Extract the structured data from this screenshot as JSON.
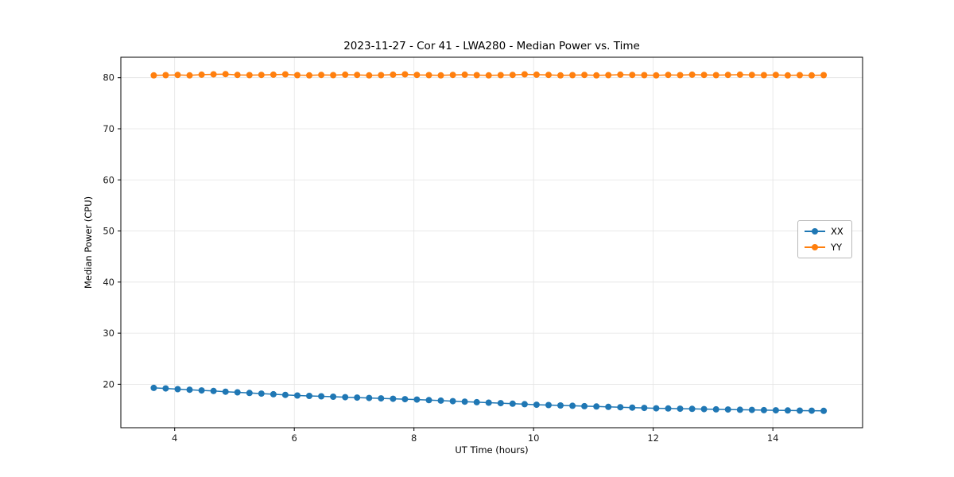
{
  "chart_data": {
    "type": "line",
    "title": "2023-11-27 - Cor 41 - LWA280 - Median Power vs. Time",
    "xlabel": "UT Time (hours)",
    "ylabel": "Median Power (CPU)",
    "xlim": [
      3.1,
      15.5
    ],
    "ylim": [
      11.5,
      84
    ],
    "xticks": [
      4,
      6,
      8,
      10,
      12,
      14
    ],
    "yticks": [
      20,
      30,
      40,
      50,
      60,
      70,
      80
    ],
    "grid": true,
    "legend_position": "center right",
    "x": [
      3.65,
      3.85,
      4.05,
      4.25,
      4.45,
      4.65,
      4.85,
      5.05,
      5.25,
      5.45,
      5.65,
      5.85,
      6.05,
      6.25,
      6.45,
      6.65,
      6.85,
      7.05,
      7.25,
      7.45,
      7.65,
      7.85,
      8.05,
      8.25,
      8.45,
      8.65,
      8.85,
      9.05,
      9.25,
      9.45,
      9.65,
      9.85,
      10.05,
      10.25,
      10.45,
      10.65,
      10.85,
      11.05,
      11.25,
      11.45,
      11.65,
      11.85,
      12.05,
      12.25,
      12.45,
      12.65,
      12.85,
      13.05,
      13.25,
      13.45,
      13.65,
      13.85,
      14.05,
      14.25,
      14.45,
      14.65,
      14.85
    ],
    "series": [
      {
        "name": "XX",
        "color": "#1f77b4",
        "values": [
          19.3,
          19.18,
          19.05,
          18.93,
          18.8,
          18.68,
          18.55,
          18.43,
          18.3,
          18.18,
          18.05,
          17.93,
          17.8,
          17.72,
          17.64,
          17.56,
          17.48,
          17.4,
          17.32,
          17.24,
          17.16,
          17.08,
          17.0,
          16.9,
          16.8,
          16.7,
          16.6,
          16.5,
          16.4,
          16.3,
          16.2,
          16.1,
          16.0,
          15.93,
          15.86,
          15.79,
          15.72,
          15.65,
          15.58,
          15.51,
          15.44,
          15.37,
          15.3,
          15.26,
          15.22,
          15.18,
          15.14,
          15.1,
          15.06,
          15.02,
          14.98,
          14.94,
          14.9,
          14.88,
          14.85,
          14.83,
          14.8
        ]
      },
      {
        "name": "YY",
        "color": "#ff7f0e",
        "values": [
          80.45,
          80.5,
          80.55,
          80.45,
          80.6,
          80.65,
          80.7,
          80.55,
          80.5,
          80.55,
          80.6,
          80.65,
          80.5,
          80.45,
          80.55,
          80.5,
          80.6,
          80.55,
          80.45,
          80.5,
          80.6,
          80.65,
          80.55,
          80.5,
          80.45,
          80.55,
          80.6,
          80.5,
          80.45,
          80.5,
          80.55,
          80.65,
          80.6,
          80.55,
          80.45,
          80.5,
          80.55,
          80.45,
          80.5,
          80.6,
          80.55,
          80.5,
          80.45,
          80.55,
          80.5,
          80.6,
          80.55,
          80.5,
          80.55,
          80.6,
          80.55,
          80.5,
          80.55,
          80.45,
          80.5,
          80.45,
          80.5
        ]
      }
    ]
  }
}
